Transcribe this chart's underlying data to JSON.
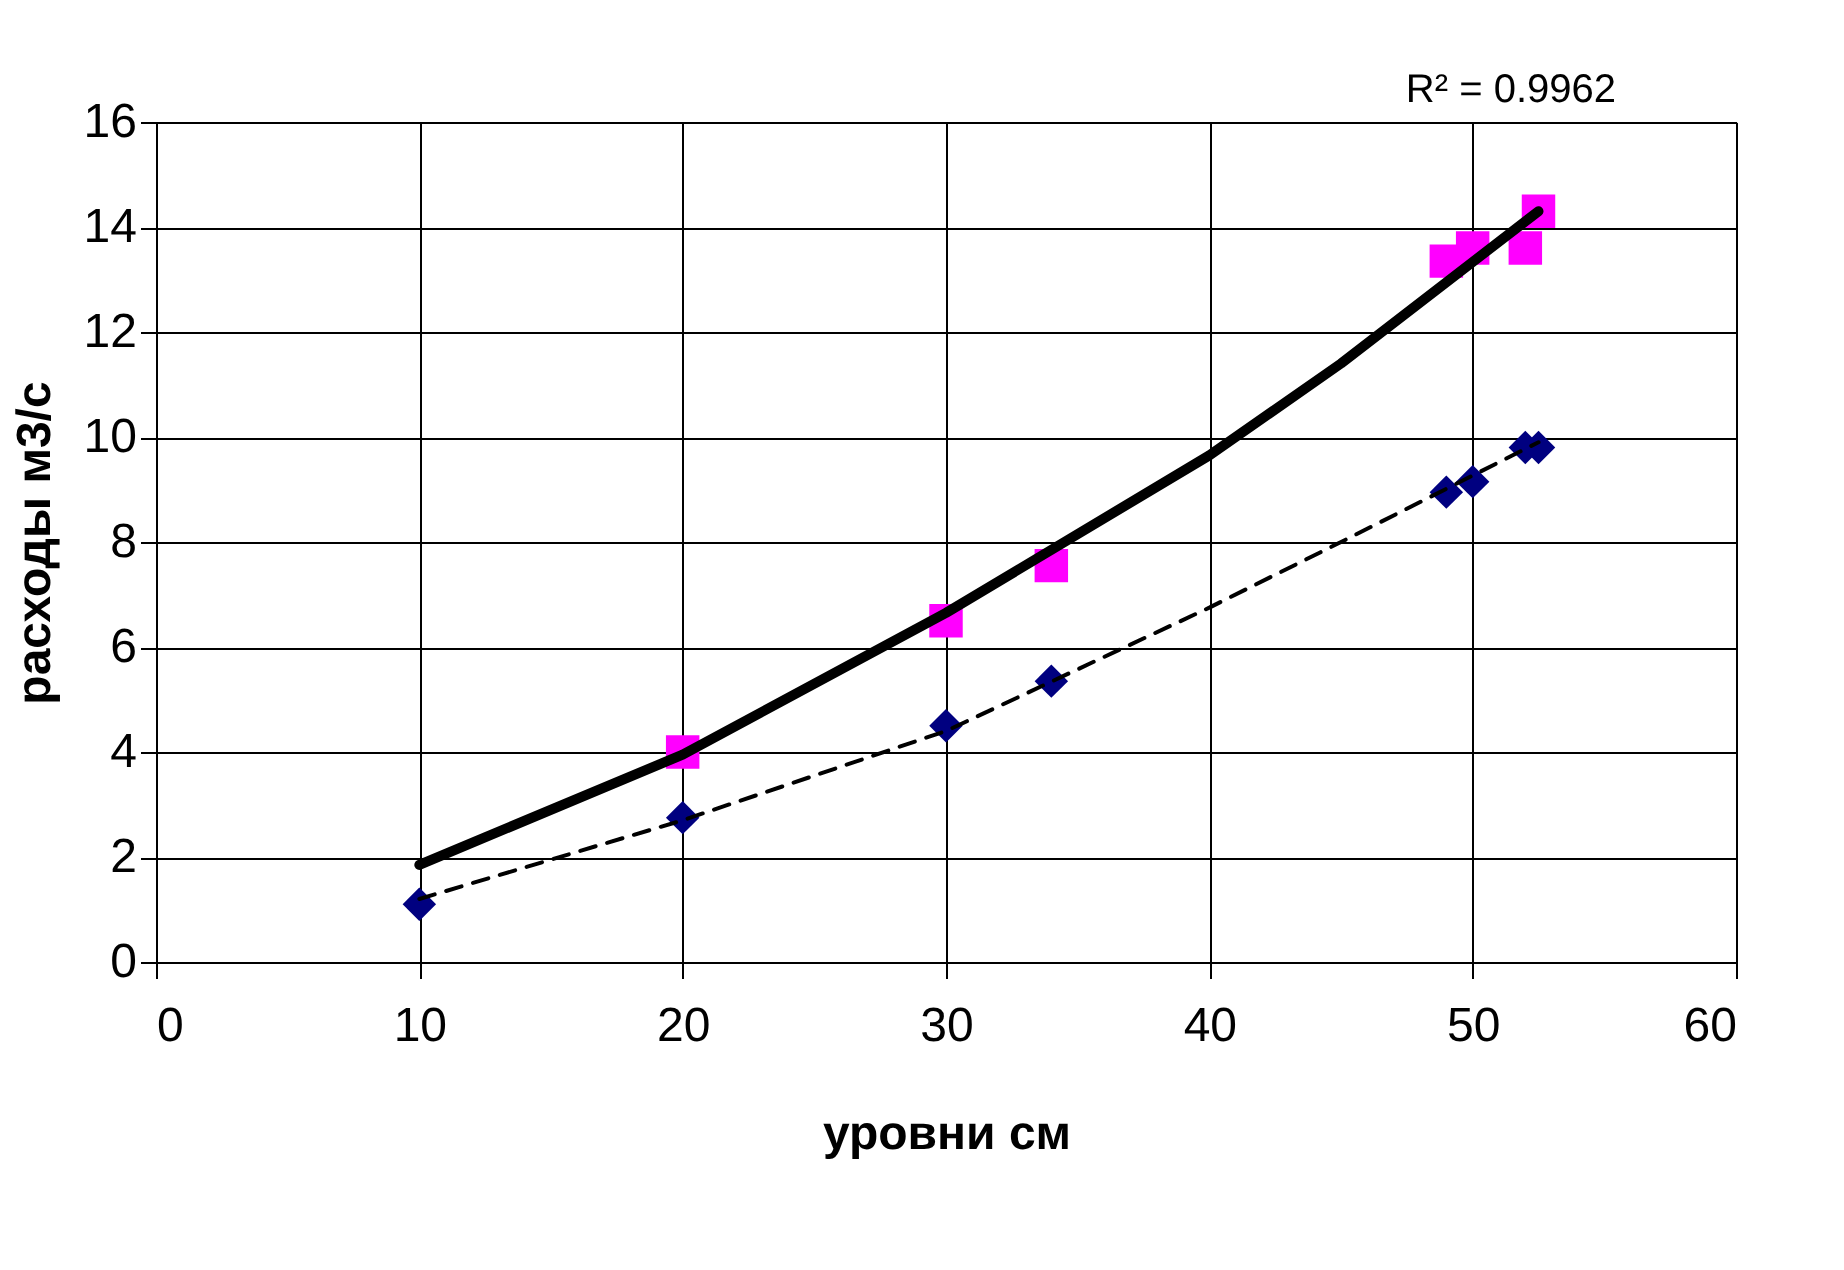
{
  "chart_data": {
    "type": "scatter",
    "xlabel": "уровни см",
    "ylabel": "расходы м3/с",
    "annotations": [
      "R² = 0.9962"
    ],
    "xlim": [
      0,
      60
    ],
    "xticks": [
      0,
      10,
      20,
      30,
      40,
      50,
      60
    ],
    "ylim": [
      0,
      16
    ],
    "yticks": [
      0,
      2,
      4,
      6,
      8,
      10,
      12,
      14,
      16
    ],
    "grid": true,
    "series": [
      {
        "marker": "square",
        "color": "#ff00ff",
        "x": [
          20,
          30,
          34,
          49,
          50,
          52,
          52.5
        ],
        "values": [
          4.0,
          6.5,
          7.55,
          13.35,
          13.6,
          13.6,
          14.3
        ]
      },
      {
        "marker": "diamond",
        "color": "#000080",
        "x": [
          10,
          20,
          30,
          34,
          49,
          50,
          52,
          52.5
        ],
        "values": [
          1.1,
          2.75,
          4.5,
          5.35,
          8.95,
          9.15,
          9.8,
          9.8
        ]
      },
      {
        "type": "line",
        "line_style": "solid",
        "color": "#000000",
        "x": [
          10,
          20,
          30,
          40,
          45,
          52.5
        ],
        "values": [
          1.85,
          3.95,
          6.65,
          9.65,
          11.4,
          14.3
        ]
      },
      {
        "type": "line",
        "line_style": "dashed",
        "color": "#000000",
        "x": [
          10,
          20,
          30,
          40,
          45,
          52.5
        ],
        "values": [
          1.2,
          2.7,
          4.4,
          6.75,
          8.0,
          9.9
        ]
      }
    ]
  }
}
